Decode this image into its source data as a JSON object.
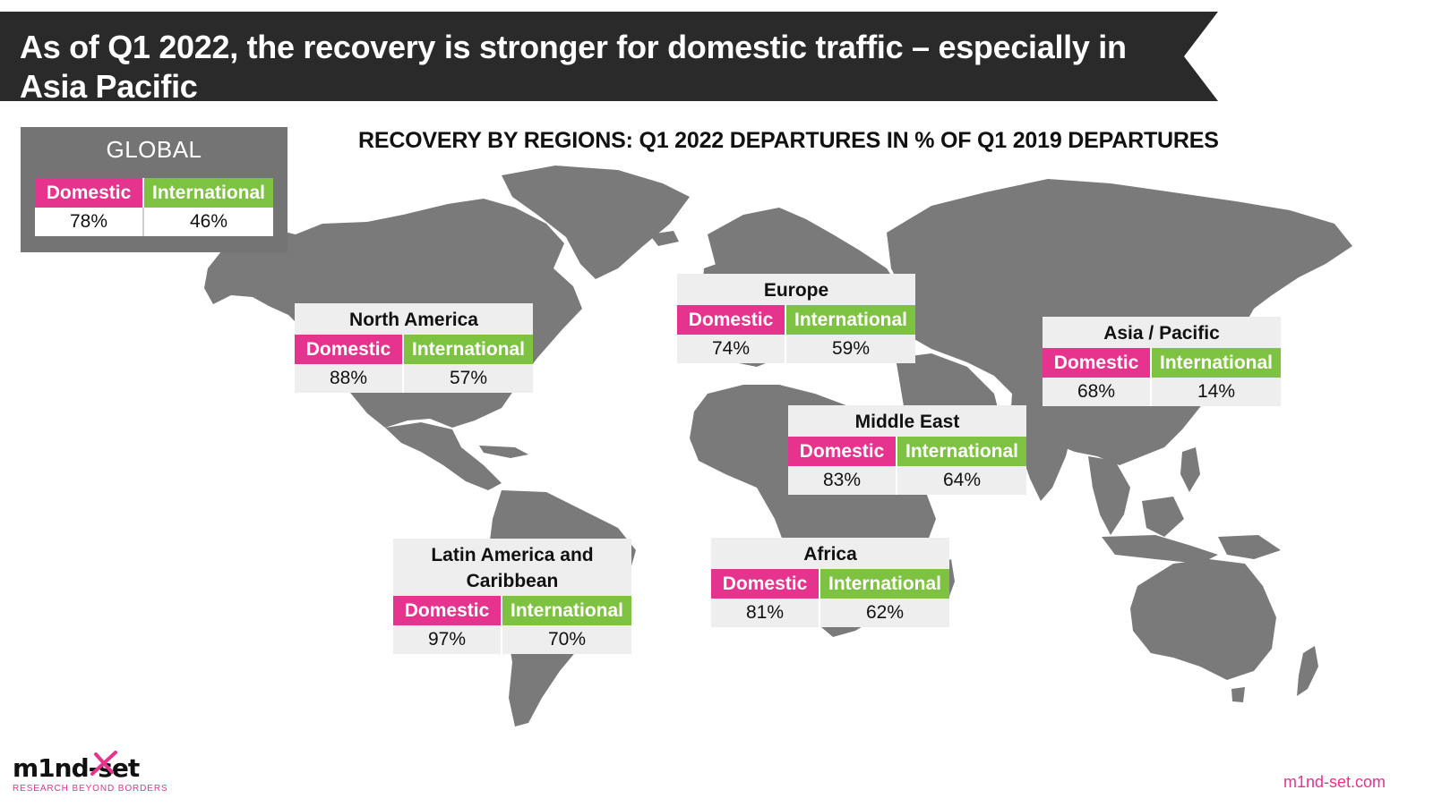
{
  "header": {
    "title": "As of Q1 2022, the recovery is stronger for domestic traffic – especially in Asia Pacific"
  },
  "subtitle": "RECOVERY BY REGIONS: Q1 2022 DEPARTURES IN % OF Q1 2019 DEPARTURES",
  "labels": {
    "domestic": "Domestic",
    "international": "International"
  },
  "global": {
    "title": "GLOBAL",
    "domestic": "78%",
    "international": "46%"
  },
  "regions": {
    "north_america": {
      "name": "North America",
      "domestic": "88%",
      "international": "57%"
    },
    "europe": {
      "name": "Europe",
      "domestic": "74%",
      "international": "59%"
    },
    "asia_pacific": {
      "name": "Asia / Pacific",
      "domestic": "68%",
      "international": "14%"
    },
    "middle_east": {
      "name": "Middle East",
      "domestic": "83%",
      "international": "64%"
    },
    "latin_america": {
      "name": "Latin America and Caribbean",
      "domestic": "97%",
      "international": "70%"
    },
    "africa": {
      "name": "Africa",
      "domestic": "81%",
      "international": "62%"
    }
  },
  "branding": {
    "logo_text": "m1nd-set",
    "logo_tagline": "RESEARCH BEYOND BORDERS",
    "url": "m1nd-set.com"
  },
  "colors": {
    "banner": "#2a2a2a",
    "domestic": "#e6338d",
    "international": "#7ec242",
    "land": "#7a7a7a",
    "global_box": "#747474"
  }
}
